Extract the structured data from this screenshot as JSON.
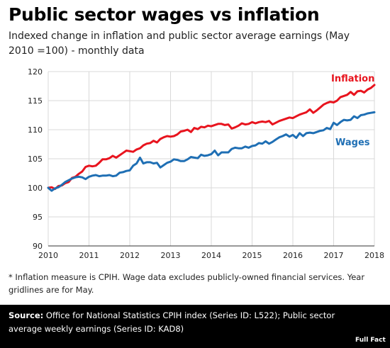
{
  "title": "Public sector wages vs inflation",
  "subtitle": "Indexed change in inflation and public sector average earnings (May 2010 =100) - monthly data",
  "footnote": "* Inflation measure is CPIH. Wage data excludes publicly-owned financial services. Year gridlines are for May.",
  "source_label": "Source:",
  "source_text": "Office for National Statistics CPIH index (Series ID: L522); Public sector average weekly earnings (Series ID: KAD8)",
  "logo_text": "Full Fact",
  "colors": {
    "inflation": "#e8141e",
    "wages": "#1f6fb4",
    "grid": "#d9d9d9"
  },
  "chart_data": {
    "type": "line",
    "title": "Public sector wages vs inflation",
    "xlabel": "",
    "ylabel": "",
    "xlim": [
      2010,
      2018
    ],
    "ylim": [
      90,
      120
    ],
    "x_ticks": [
      2010,
      2011,
      2012,
      2013,
      2014,
      2015,
      2016,
      2017,
      2018
    ],
    "y_ticks": [
      90,
      95,
      100,
      105,
      110,
      115,
      120
    ],
    "grid": true,
    "legend": "inline labels",
    "series": [
      {
        "name": "Inflation",
        "color": "#e8141e",
        "x": [
          2010.0,
          2010.083,
          2010.167,
          2010.25,
          2010.333,
          2010.417,
          2010.5,
          2010.583,
          2010.667,
          2010.75,
          2010.833,
          2010.917,
          2011.0,
          2011.083,
          2011.167,
          2011.25,
          2011.333,
          2011.417,
          2011.5,
          2011.583,
          2011.667,
          2011.75,
          2011.833,
          2011.917,
          2012.0,
          2012.083,
          2012.167,
          2012.25,
          2012.333,
          2012.417,
          2012.5,
          2012.583,
          2012.667,
          2012.75,
          2012.833,
          2012.917,
          2013.0,
          2013.083,
          2013.167,
          2013.25,
          2013.333,
          2013.417,
          2013.5,
          2013.583,
          2013.667,
          2013.75,
          2013.833,
          2013.917,
          2014.0,
          2014.083,
          2014.167,
          2014.25,
          2014.333,
          2014.417,
          2014.5,
          2014.583,
          2014.667,
          2014.75,
          2014.833,
          2014.917,
          2015.0,
          2015.083,
          2015.167,
          2015.25,
          2015.333,
          2015.417,
          2015.5,
          2015.583,
          2015.667,
          2015.75,
          2015.833,
          2015.917,
          2016.0,
          2016.083,
          2016.167,
          2016.25,
          2016.333,
          2016.417,
          2016.5,
          2016.583,
          2016.667,
          2016.75,
          2016.833,
          2016.917,
          2017.0,
          2017.083,
          2017.167,
          2017.25,
          2017.333,
          2017.417,
          2017.5,
          2017.583,
          2017.667,
          2017.75,
          2017.833,
          2017.917,
          2018.0
        ],
        "values": [
          100.0,
          100.1,
          99.8,
          100.3,
          100.4,
          100.8,
          101.0,
          101.7,
          101.9,
          102.4,
          102.8,
          103.6,
          103.8,
          103.7,
          103.8,
          104.3,
          104.9,
          104.9,
          105.1,
          105.5,
          105.2,
          105.6,
          106.0,
          106.4,
          106.3,
          106.2,
          106.6,
          106.8,
          107.3,
          107.6,
          107.7,
          108.1,
          107.8,
          108.4,
          108.7,
          108.9,
          108.8,
          108.9,
          109.2,
          109.7,
          109.8,
          110.0,
          109.6,
          110.3,
          110.1,
          110.5,
          110.4,
          110.7,
          110.6,
          110.8,
          111.0,
          111.0,
          110.8,
          110.9,
          110.2,
          110.4,
          110.7,
          111.1,
          110.9,
          111.0,
          111.3,
          111.1,
          111.3,
          111.4,
          111.3,
          111.5,
          110.9,
          111.2,
          111.5,
          111.7,
          111.9,
          112.1,
          112.0,
          112.3,
          112.6,
          112.8,
          113.0,
          113.5,
          112.9,
          113.3,
          113.8,
          114.3,
          114.6,
          114.8,
          114.7,
          115.0,
          115.6,
          115.8,
          116.0,
          116.5,
          116.0,
          116.6,
          116.7,
          116.4,
          116.9,
          117.2,
          117.7
        ]
      },
      {
        "name": "Wages",
        "color": "#1f6fb4",
        "x": [
          2010.0,
          2010.083,
          2010.167,
          2010.25,
          2010.333,
          2010.417,
          2010.5,
          2010.583,
          2010.667,
          2010.75,
          2010.833,
          2010.917,
          2011.0,
          2011.083,
          2011.167,
          2011.25,
          2011.333,
          2011.417,
          2011.5,
          2011.583,
          2011.667,
          2011.75,
          2011.833,
          2011.917,
          2012.0,
          2012.083,
          2012.167,
          2012.25,
          2012.333,
          2012.417,
          2012.5,
          2012.583,
          2012.667,
          2012.75,
          2012.833,
          2012.917,
          2013.0,
          2013.083,
          2013.167,
          2013.25,
          2013.333,
          2013.417,
          2013.5,
          2013.583,
          2013.667,
          2013.75,
          2013.833,
          2013.917,
          2014.0,
          2014.083,
          2014.167,
          2014.25,
          2014.333,
          2014.417,
          2014.5,
          2014.583,
          2014.667,
          2014.75,
          2014.833,
          2014.917,
          2015.0,
          2015.083,
          2015.167,
          2015.25,
          2015.333,
          2015.417,
          2015.5,
          2015.583,
          2015.667,
          2015.75,
          2015.833,
          2015.917,
          2016.0,
          2016.083,
          2016.167,
          2016.25,
          2016.333,
          2016.417,
          2016.5,
          2016.583,
          2016.667,
          2016.75,
          2016.833,
          2016.917,
          2017.0,
          2017.083,
          2017.167,
          2017.25,
          2017.333,
          2017.417,
          2017.5,
          2017.583,
          2017.667,
          2017.75,
          2017.833,
          2017.917,
          2018.0
        ],
        "values": [
          100.0,
          99.5,
          99.9,
          100.1,
          100.5,
          101.0,
          101.3,
          101.6,
          101.8,
          101.9,
          101.8,
          101.5,
          101.9,
          102.1,
          102.2,
          102.0,
          102.1,
          102.1,
          102.2,
          102.0,
          102.1,
          102.6,
          102.7,
          102.9,
          103.0,
          103.8,
          104.2,
          105.2,
          104.2,
          104.4,
          104.4,
          104.2,
          104.3,
          103.5,
          103.9,
          104.3,
          104.5,
          104.9,
          104.8,
          104.6,
          104.6,
          104.9,
          105.3,
          105.2,
          105.1,
          105.7,
          105.5,
          105.6,
          105.8,
          106.4,
          105.6,
          106.1,
          106.1,
          106.1,
          106.7,
          106.9,
          106.8,
          106.8,
          107.1,
          106.9,
          107.2,
          107.3,
          107.7,
          107.6,
          108.0,
          107.6,
          107.9,
          108.3,
          108.7,
          108.9,
          109.2,
          108.8,
          109.1,
          108.6,
          109.4,
          108.9,
          109.4,
          109.5,
          109.4,
          109.6,
          109.8,
          109.9,
          110.3,
          110.1,
          111.2,
          110.8,
          111.3,
          111.7,
          111.6,
          111.7,
          112.3,
          112.0,
          112.5,
          112.6,
          112.8,
          112.9,
          113.0
        ]
      }
    ]
  }
}
